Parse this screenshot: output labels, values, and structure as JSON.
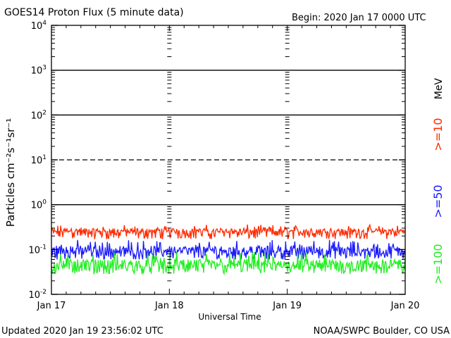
{
  "title": "GOES14 Proton Flux (5 minute data)",
  "begin_label": "Begin: 2020 Jan 17 0000 UTC",
  "updated_label": "Updated 2020 Jan 19 23:56:02 UTC",
  "credit_label": "NOAA/SWPC Boulder, CO USA",
  "colors": {
    "ge10": "#ff2a00",
    "ge50": "#1a1aff",
    "ge100": "#22ee22",
    "axis": "#000000"
  },
  "chart_data": {
    "type": "line",
    "title": "GOES14 Proton Flux (5 minute data)",
    "xlabel": "Universal Time",
    "ylabel": "Particles cm⁻²s⁻¹sr⁻¹",
    "yscale": "log",
    "ylim": [
      0.01,
      10000
    ],
    "x_range_hours": [
      0,
      72
    ],
    "x_tick_labels": [
      "Jan 17",
      "Jan 18",
      "Jan 19",
      "Jan 20"
    ],
    "x_tick_hours": [
      0,
      24,
      48,
      72
    ],
    "y_tick_labels": [
      {
        "base": "10",
        "exp": "4"
      },
      {
        "base": "10",
        "exp": "3"
      },
      {
        "base": "10",
        "exp": "2"
      },
      {
        "base": "10",
        "exp": "1"
      },
      {
        "base": "10",
        "exp": "0"
      },
      {
        "base": "10",
        "exp": "-1"
      },
      {
        "base": "10",
        "exp": "-2"
      }
    ],
    "y_tick_values": [
      10000,
      1000,
      100,
      10,
      1,
      0.1,
      0.01
    ],
    "reference_lines": [
      {
        "y": 1000,
        "style": "solid"
      },
      {
        "y": 100,
        "style": "solid"
      },
      {
        "y": 10,
        "style": "dashed"
      },
      {
        "y": 1,
        "style": "solid"
      }
    ],
    "legend_unit": "MeV",
    "series": [
      {
        "name": ">=10",
        "color_key": "ge10",
        "baseline": 0.24,
        "noise_low": 0.17,
        "noise_high": 0.36
      },
      {
        "name": ">=50",
        "color_key": "ge50",
        "baseline": 0.085,
        "noise_low": 0.06,
        "noise_high": 0.17
      },
      {
        "name": ">=100",
        "color_key": "ge100",
        "baseline": 0.04,
        "noise_low": 0.028,
        "noise_high": 0.09
      }
    ]
  }
}
